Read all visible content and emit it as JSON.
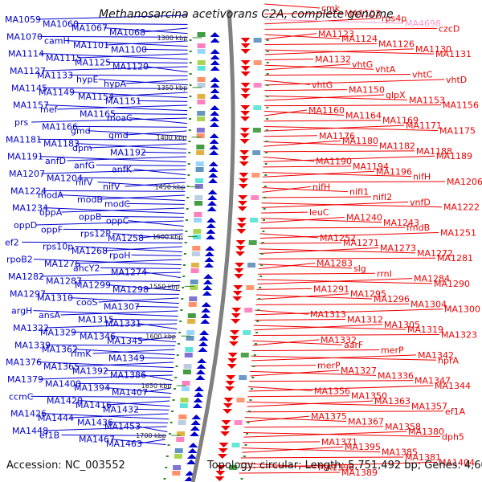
{
  "title": "Methanosarcina acetivorans C2A, complete genome",
  "accession": "Accession: NC_003552",
  "topology": "Topology: circular; Length: 5,751,492 bp; Genes: 4,609",
  "colors": {
    "forward": "#0000cc",
    "reverse": "#ee0000",
    "pseudo": "#ff99cc",
    "backbone": "#808080",
    "tick": "#2a8a2a"
  },
  "scale_labels": [
    "1300 kbp",
    "1350 kbp",
    "1400 kbp",
    "1450 kbp",
    "1500 kbp",
    "1550 kbp",
    "1600 kbp",
    "1650 kbp",
    "1700 kbp"
  ],
  "left_labels": [
    "MA1059",
    "MA1060",
    "MA1067",
    "MA1068",
    "MA1070",
    "camH",
    "MA1101",
    "MA1100",
    "MA1114",
    "MA1115",
    "MA1125",
    "MA1120",
    "MA1127",
    "MA1133",
    "hypE",
    "hypA",
    "MA1145",
    "MA1149",
    "MA1154",
    "MA1151",
    "MA1157",
    "mef",
    "MA1165",
    "moaC",
    "prs",
    "MA1166",
    "gmd",
    "gmd",
    "MA1181",
    "MA1183",
    "dpm",
    "MA1192",
    "MA1191",
    "anfD",
    "anfG",
    "anfK",
    "MA1207",
    "MA1204",
    "nifV",
    "nifV",
    "MA1224",
    "modA",
    "modB",
    "modC",
    "MA1234",
    "oppA",
    "oppB",
    "oppC",
    "oppD",
    "oppF",
    "rps12P",
    "MA1258",
    "ef2",
    "rps10p",
    "MA1268",
    "rpoH",
    "rpoB2",
    "MA1276",
    "ahcY2",
    "MA1274",
    "MA1282",
    "MA1287",
    "MA1299",
    "MA1298",
    "MA1297",
    "MA1310",
    "cooS",
    "MA1307",
    "argH",
    "ansA",
    "MA1315",
    "MA1331",
    "MA1322",
    "MA1329",
    "MA1346",
    "MA1345",
    "MA1339",
    "MA1362",
    "rimK",
    "MA1349",
    "MA1376",
    "MA1365",
    "MA1392",
    "MA1386",
    "MA1379",
    "MA1400",
    "MA1394",
    "MA1407",
    "ccmC",
    "MA1420",
    "MA1416",
    "MA1432",
    "MA1426",
    "MA1444",
    "MA1436",
    "MA1453",
    "MA1448",
    "ef1B",
    "MA1467",
    "MA1463"
  ],
  "right_labels": [
    "cmk",
    "MA1103",
    "rps4p",
    "MA4698",
    "czcD",
    "MA1123",
    "MA1124",
    "MA1126",
    "MA1130",
    "MA1131",
    "MA1132",
    "vhtG",
    "vhtA",
    "vhtC",
    "vhtD",
    "vhtG",
    "MA1150",
    "glpX",
    "MA1153",
    "MA1156",
    "MA1160",
    "MA1164",
    "MA1169",
    "MA1171",
    "MA1175",
    "MA1176",
    "MA1180",
    "MA1182",
    "MA1188",
    "MA1189",
    "MA1190",
    "MA1194",
    "MA1196",
    "nifH",
    "MA1206",
    "nifH",
    "nifI1",
    "nifI2",
    "vnfD",
    "MA1222",
    "leuC",
    "MA1240",
    "MA1243",
    "fmdB",
    "MA1251",
    "MA1252",
    "MA1271",
    "MA1273",
    "MA1272",
    "MA1281",
    "MA1283",
    "slg",
    "rrnI",
    "MA1284",
    "MA1290",
    "MA1291",
    "MA1295",
    "MA1296",
    "MA1304",
    "MA1300",
    "MA1313",
    "MA1312",
    "MA1305",
    "MA1319",
    "MA1323",
    "MA1332",
    "aarF",
    "merP",
    "MA1342",
    "hprA",
    "merP",
    "MA1327",
    "MA1336",
    "MA1347",
    "MA1344",
    "MA1356",
    "MA1350",
    "MA1363",
    "MA1357",
    "ef1A",
    "MA1375",
    "MA1367",
    "MA1358",
    "MA1380",
    "dph5",
    "MA1371",
    "MA1395",
    "MA1385",
    "MA1381",
    "MA1404",
    "MA1396",
    "MA1389"
  ]
}
